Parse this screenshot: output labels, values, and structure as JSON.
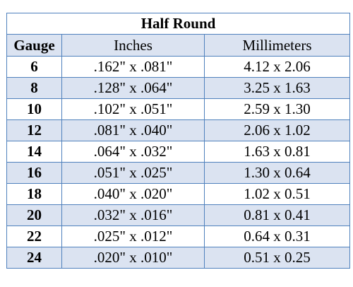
{
  "table": {
    "title": "Half Round",
    "headers": {
      "gauge": "Gauge",
      "inches": "Inches",
      "millimeters": "Millimeters"
    },
    "rows": [
      {
        "gauge": "6",
        "inches": ".162\" x .081\"",
        "millimeters": "4.12 x 2.06"
      },
      {
        "gauge": "8",
        "inches": ".128\" x .064\"",
        "millimeters": "3.25 x 1.63"
      },
      {
        "gauge": "10",
        "inches": ".102\" x .051\"",
        "millimeters": "2.59 x 1.30"
      },
      {
        "gauge": "12",
        "inches": ".081\" x .040\"",
        "millimeters": "2.06 x 1.02"
      },
      {
        "gauge": "14",
        "inches": ".064\" x .032\"",
        "millimeters": "1.63 x 0.81"
      },
      {
        "gauge": "16",
        "inches": ".051\" x .025\"",
        "millimeters": "1.30 x 0.64"
      },
      {
        "gauge": "18",
        "inches": ".040\" x .020\"",
        "millimeters": "1.02 x 0.51"
      },
      {
        "gauge": "20",
        "inches": ".032\" x .016\"",
        "millimeters": "0.81 x 0.41"
      },
      {
        "gauge": "22",
        "inches": ".025\" x .012\"",
        "millimeters": "0.64 x 0.31"
      },
      {
        "gauge": "24",
        "inches": ".020\" x .010\"",
        "millimeters": "0.51 x 0.25"
      }
    ],
    "colors": {
      "border": "#4f81bd",
      "band": "#dbe3f1"
    }
  }
}
